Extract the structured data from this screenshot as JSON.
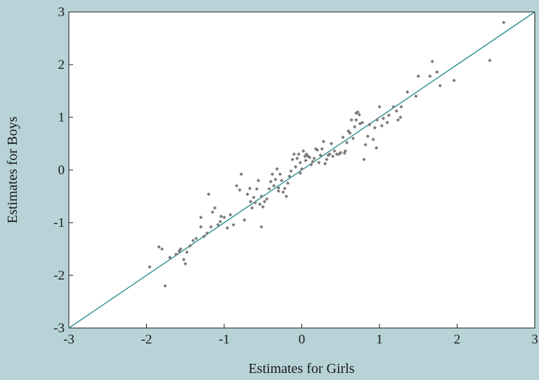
{
  "chart_data": {
    "type": "scatter",
    "title": "",
    "xlabel": "Estimates for Girls",
    "ylabel": "Estimates for Boys",
    "xlim": [
      -3,
      3
    ],
    "ylim": [
      -3,
      3
    ],
    "x_ticks": [
      "-3",
      "-2",
      "-1",
      "0",
      "1",
      "2",
      "3"
    ],
    "y_ticks": [
      "-3",
      "-2",
      "-1",
      "0",
      "1",
      "2",
      "3"
    ],
    "grid": false,
    "legend": "none",
    "reference_line": {
      "description": "y = x",
      "from": [
        -3,
        -3
      ],
      "to": [
        3,
        3
      ]
    },
    "colors": {
      "background": "#b7d3d8",
      "plot_area": "#ffffff",
      "points": "#7a7a7a",
      "reference_line": "#2f8f8f",
      "axis": "#1a1a1a"
    },
    "points": [
      [
        2.6,
        2.8
      ],
      [
        2.42,
        2.08
      ],
      [
        1.96,
        1.7
      ],
      [
        1.78,
        1.6
      ],
      [
        1.74,
        1.86
      ],
      [
        1.68,
        2.06
      ],
      [
        1.65,
        1.78
      ],
      [
        1.5,
        1.78
      ],
      [
        1.47,
        1.4
      ],
      [
        1.36,
        1.48
      ],
      [
        1.28,
        1.2
      ],
      [
        1.27,
        1.0
      ],
      [
        1.24,
        0.95
      ],
      [
        1.22,
        1.12
      ],
      [
        1.18,
        1.2
      ],
      [
        1.12,
        1.04
      ],
      [
        1.1,
        0.9
      ],
      [
        1.03,
        0.84
      ],
      [
        1.0,
        1.2
      ],
      [
        0.97,
        0.95
      ],
      [
        0.94,
        0.8
      ],
      [
        0.96,
        0.42
      ],
      [
        0.87,
        0.86
      ],
      [
        0.85,
        0.64
      ],
      [
        0.82,
        0.48
      ],
      [
        0.8,
        0.2
      ],
      [
        0.78,
        0.9
      ],
      [
        0.75,
        0.88
      ],
      [
        0.74,
        1.05
      ],
      [
        0.72,
        1.1
      ],
      [
        0.7,
        1.08
      ],
      [
        0.68,
        0.82
      ],
      [
        0.66,
        0.6
      ],
      [
        0.64,
        0.95
      ],
      [
        0.62,
        0.7
      ],
      [
        0.6,
        0.74
      ],
      [
        0.58,
        0.52
      ],
      [
        0.56,
        0.36
      ],
      [
        0.53,
        0.62
      ],
      [
        0.5,
        0.33
      ],
      [
        0.48,
        0.3
      ],
      [
        0.45,
        0.3
      ],
      [
        0.42,
        0.36
      ],
      [
        0.4,
        0.26
      ],
      [
        0.38,
        0.5
      ],
      [
        0.36,
        0.3
      ],
      [
        0.34,
        0.28
      ],
      [
        0.32,
        0.2
      ],
      [
        0.3,
        0.12
      ],
      [
        0.28,
        0.54
      ],
      [
        0.26,
        0.4
      ],
      [
        0.24,
        0.28
      ],
      [
        0.22,
        0.14
      ],
      [
        0.2,
        0.38
      ],
      [
        0.18,
        0.4
      ],
      [
        0.16,
        0.22
      ],
      [
        0.14,
        0.16
      ],
      [
        0.12,
        0.1
      ],
      [
        0.1,
        0.24
      ],
      [
        0.08,
        0.26
      ],
      [
        0.06,
        0.3
      ],
      [
        0.04,
        0.26
      ],
      [
        0.02,
        0.36
      ],
      [
        0.0,
        0.02
      ],
      [
        -0.02,
        0.14
      ],
      [
        -0.04,
        0.3
      ],
      [
        -0.06,
        0.22
      ],
      [
        -0.08,
        0.06
      ],
      [
        -0.1,
        0.3
      ],
      [
        -0.12,
        0.2
      ],
      [
        -0.14,
        -0.02
      ],
      [
        -0.16,
        -0.12
      ],
      [
        -0.18,
        -0.25
      ],
      [
        -0.2,
        -0.5
      ],
      [
        -0.22,
        -0.35
      ],
      [
        -0.24,
        -0.42
      ],
      [
        -0.26,
        -0.2
      ],
      [
        -0.28,
        -0.08
      ],
      [
        -0.3,
        -0.34
      ],
      [
        -0.32,
        0.02
      ],
      [
        -0.34,
        -0.18
      ],
      [
        -0.36,
        -0.3
      ],
      [
        -0.38,
        -0.08
      ],
      [
        -0.4,
        -0.22
      ],
      [
        -0.42,
        -0.36
      ],
      [
        -0.45,
        -0.55
      ],
      [
        -0.48,
        -0.6
      ],
      [
        -0.5,
        -0.7
      ],
      [
        -0.52,
        -0.5
      ],
      [
        -0.54,
        -0.65
      ],
      [
        -0.56,
        -0.2
      ],
      [
        -0.58,
        -0.36
      ],
      [
        -0.6,
        -0.62
      ],
      [
        -0.62,
        -0.52
      ],
      [
        -0.64,
        -0.72
      ],
      [
        -0.67,
        -0.35
      ],
      [
        -0.7,
        -0.46
      ],
      [
        -0.74,
        -0.95
      ],
      [
        -0.78,
        -0.08
      ],
      [
        -0.8,
        -0.38
      ],
      [
        -0.84,
        -0.3
      ],
      [
        -0.88,
        -1.04
      ],
      [
        -0.92,
        -0.85
      ],
      [
        -0.96,
        -1.1
      ],
      [
        -1.0,
        -0.9
      ],
      [
        -1.04,
        -0.88
      ],
      [
        -1.08,
        -1.04
      ],
      [
        -1.12,
        -0.72
      ],
      [
        -1.15,
        -0.8
      ],
      [
        -1.17,
        -1.08
      ],
      [
        -1.2,
        -0.46
      ],
      [
        -1.22,
        -1.2
      ],
      [
        -1.26,
        -1.26
      ],
      [
        -1.3,
        -0.9
      ],
      [
        -1.36,
        -1.3
      ],
      [
        -1.4,
        -1.34
      ],
      [
        -1.44,
        -1.44
      ],
      [
        -1.48,
        -1.56
      ],
      [
        -1.5,
        -1.78
      ],
      [
        -1.52,
        -1.7
      ],
      [
        -1.56,
        -1.5
      ],
      [
        -1.58,
        -1.54
      ],
      [
        -1.62,
        -1.6
      ],
      [
        -1.7,
        -1.66
      ],
      [
        -1.76,
        -2.2
      ],
      [
        -1.8,
        -1.5
      ],
      [
        -1.84,
        -1.46
      ],
      [
        -1.96,
        -1.84
      ],
      [
        -0.52,
        -1.08
      ],
      [
        0.55,
        0.32
      ],
      [
        0.92,
        0.58
      ],
      [
        -0.02,
        -0.06
      ],
      [
        -0.3,
        -0.4
      ],
      [
        0.05,
        0.18
      ],
      [
        -0.66,
        -0.6
      ],
      [
        -1.3,
        -1.08
      ],
      [
        0.7,
        0.95
      ],
      [
        1.05,
        0.98
      ],
      [
        -1.05,
        -0.98
      ]
    ]
  }
}
